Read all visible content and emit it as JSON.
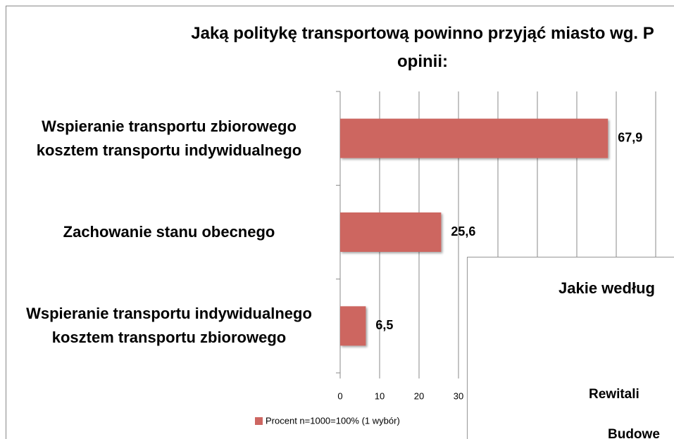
{
  "chart_data": [
    {
      "type": "bar",
      "orientation": "horizontal",
      "title": "Jaką politykę transportową powinno przyjąć miasto wg. P opinii:",
      "categories": [
        "Wspieranie transportu zbiorowego kosztem transportu indywidualnego",
        "Zachowanie stanu obecnego",
        "Wspieranie transportu indywidualnego kosztem transportu zbiorowego"
      ],
      "series": [
        {
          "name": "Procent n=1000=100% (1 wybór)",
          "color": "#cd6661",
          "values": [
            67.9,
            25.6,
            6.5
          ],
          "value_labels": [
            "67,9",
            "25,6",
            "6,5"
          ]
        }
      ],
      "xlim": [
        0,
        90
      ],
      "xticks": [
        0,
        10,
        20,
        30,
        40,
        50,
        60,
        70,
        80
      ],
      "grid": true,
      "legend": "bottom"
    },
    {
      "type": "bar",
      "orientation": "horizontal",
      "title": "Jakie według",
      "categories": [
        "Rewitali",
        "Budowe"
      ]
    }
  ]
}
